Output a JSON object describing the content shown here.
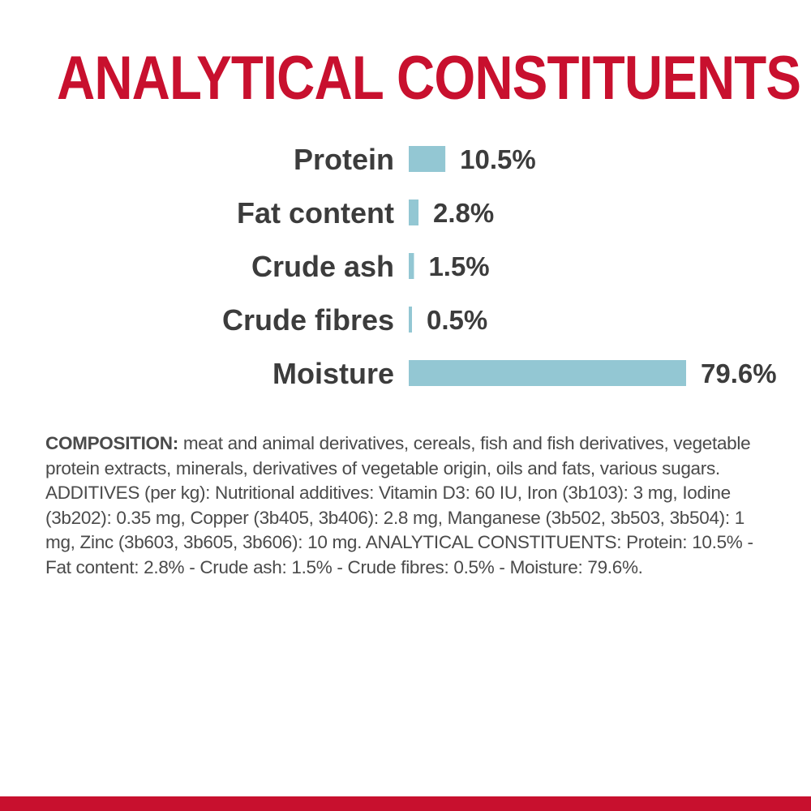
{
  "title": "ANALYTICAL CONSTITUENTS",
  "chart_data": {
    "type": "bar",
    "orientation": "horizontal",
    "categories": [
      "Protein",
      "Fat content",
      "Crude ash",
      "Crude fibres",
      "Moisture"
    ],
    "values": [
      10.5,
      2.8,
      1.5,
      0.5,
      79.6
    ],
    "value_labels": [
      "10.5%",
      "2.8%",
      "1.5%",
      "0.5%",
      "79.6%"
    ],
    "bar_color": "#93c7d3",
    "label_color": "#3c3c3c",
    "xlim": [
      0,
      79.6
    ],
    "grid": false,
    "axes": false
  },
  "composition": {
    "lead": "COMPOSITION:",
    "text": " meat and animal derivatives, cereals, fish and fish derivatives, vegetable protein extracts, minerals, derivatives of vegetable origin, oils and fats, various sugars. ADDITIVES (per kg): Nutritional additives: Vitamin D3: 60 IU, Iron (3b103): 3 mg, Iodine (3b202): 0.35 mg, Copper (3b405, 3b406): 2.8 mg, Manganese (3b502, 3b503, 3b504): 1 mg, Zinc (3b603, 3b605, 3b606): 10 mg. ANALYTICAL CONSTITUENTS: Protein: 10.5% - Fat content: 2.8% - Crude ash: 1.5% - Crude fibres: 0.5% - Moisture: 79.6%."
  },
  "colors": {
    "brand_red": "#c8102e",
    "text_gray": "#4a4a4a"
  }
}
